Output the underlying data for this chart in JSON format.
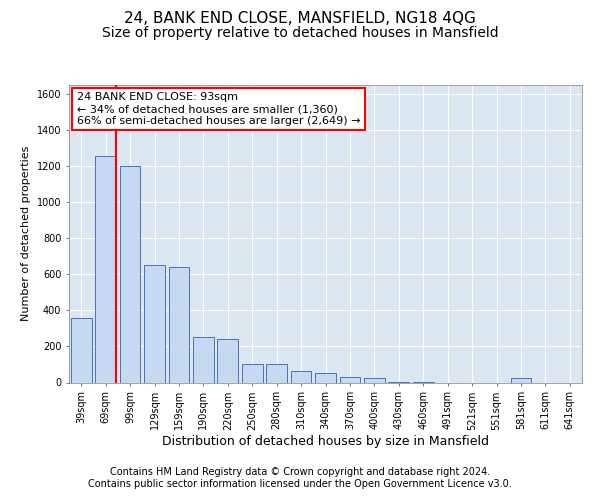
{
  "title": "24, BANK END CLOSE, MANSFIELD, NG18 4QG",
  "subtitle": "Size of property relative to detached houses in Mansfield",
  "xlabel": "Distribution of detached houses by size in Mansfield",
  "ylabel": "Number of detached properties",
  "categories": [
    "39sqm",
    "69sqm",
    "99sqm",
    "129sqm",
    "159sqm",
    "190sqm",
    "220sqm",
    "250sqm",
    "280sqm",
    "310sqm",
    "340sqm",
    "370sqm",
    "400sqm",
    "430sqm",
    "460sqm",
    "491sqm",
    "521sqm",
    "551sqm",
    "581sqm",
    "611sqm",
    "641sqm"
  ],
  "values": [
    360,
    1255,
    1200,
    650,
    640,
    250,
    240,
    105,
    100,
    65,
    55,
    30,
    25,
    5,
    5,
    0,
    0,
    0,
    25,
    0,
    0
  ],
  "bar_color": "#c5d9f0",
  "bar_edge_color": "#4472c4",
  "bg_color": "#dce6f1",
  "annotation_line1": "24 BANK END CLOSE: 93sqm",
  "annotation_line2": "← 34% of detached houses are smaller (1,360)",
  "annotation_line3": "66% of semi-detached houses are larger (2,649) →",
  "annotation_box_color": "#ffffff",
  "annotation_border_color": "#ff0000",
  "vline_color": "#ff0000",
  "ylim": [
    0,
    1650
  ],
  "yticks": [
    0,
    200,
    400,
    600,
    800,
    1000,
    1200,
    1400,
    1600
  ],
  "footer_line1": "Contains HM Land Registry data © Crown copyright and database right 2024.",
  "footer_line2": "Contains public sector information licensed under the Open Government Licence v3.0.",
  "title_fontsize": 11,
  "subtitle_fontsize": 10,
  "xlabel_fontsize": 9,
  "ylabel_fontsize": 8,
  "tick_fontsize": 7,
  "annotation_fontsize": 8,
  "footer_fontsize": 7
}
